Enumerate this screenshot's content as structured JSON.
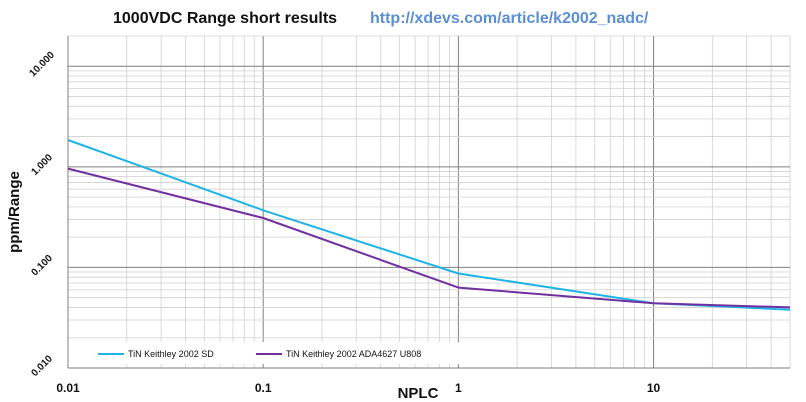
{
  "chart_data": {
    "type": "line",
    "title": "1000VDC Range short results",
    "subtitle": "http://xdevs.com/article/k2002_nadc/",
    "xlabel": "NPLC",
    "ylabel": "ppm/Range",
    "x_scale": "log",
    "y_scale": "log",
    "xlim": [
      0.01,
      50
    ],
    "ylim": [
      0.01,
      20
    ],
    "x_ticks": [
      {
        "value": 0.01,
        "label": "0.01"
      },
      {
        "value": 0.1,
        "label": "0.1"
      },
      {
        "value": 1,
        "label": "1"
      },
      {
        "value": 10,
        "label": "10"
      }
    ],
    "y_ticks": [
      {
        "value": 0.01,
        "label": "0.010"
      },
      {
        "value": 0.1,
        "label": "0.100"
      },
      {
        "value": 1,
        "label": "1.000"
      },
      {
        "value": 10,
        "label": "10.000"
      }
    ],
    "grid": true,
    "legend_position": "bottom-left",
    "series": [
      {
        "name": "TiN Keithley 2002 SD",
        "color": "#1fb4e6",
        "x": [
          0.01,
          0.1,
          1,
          10,
          50
        ],
        "y": [
          1.85,
          0.37,
          0.087,
          0.044,
          0.038
        ]
      },
      {
        "name": "TiN Keithley 2002 ADA4627 U808",
        "color": "#7030a0",
        "x": [
          0.01,
          0.1,
          1,
          10,
          50
        ],
        "y": [
          0.96,
          0.31,
          0.063,
          0.044,
          0.04
        ]
      }
    ]
  }
}
